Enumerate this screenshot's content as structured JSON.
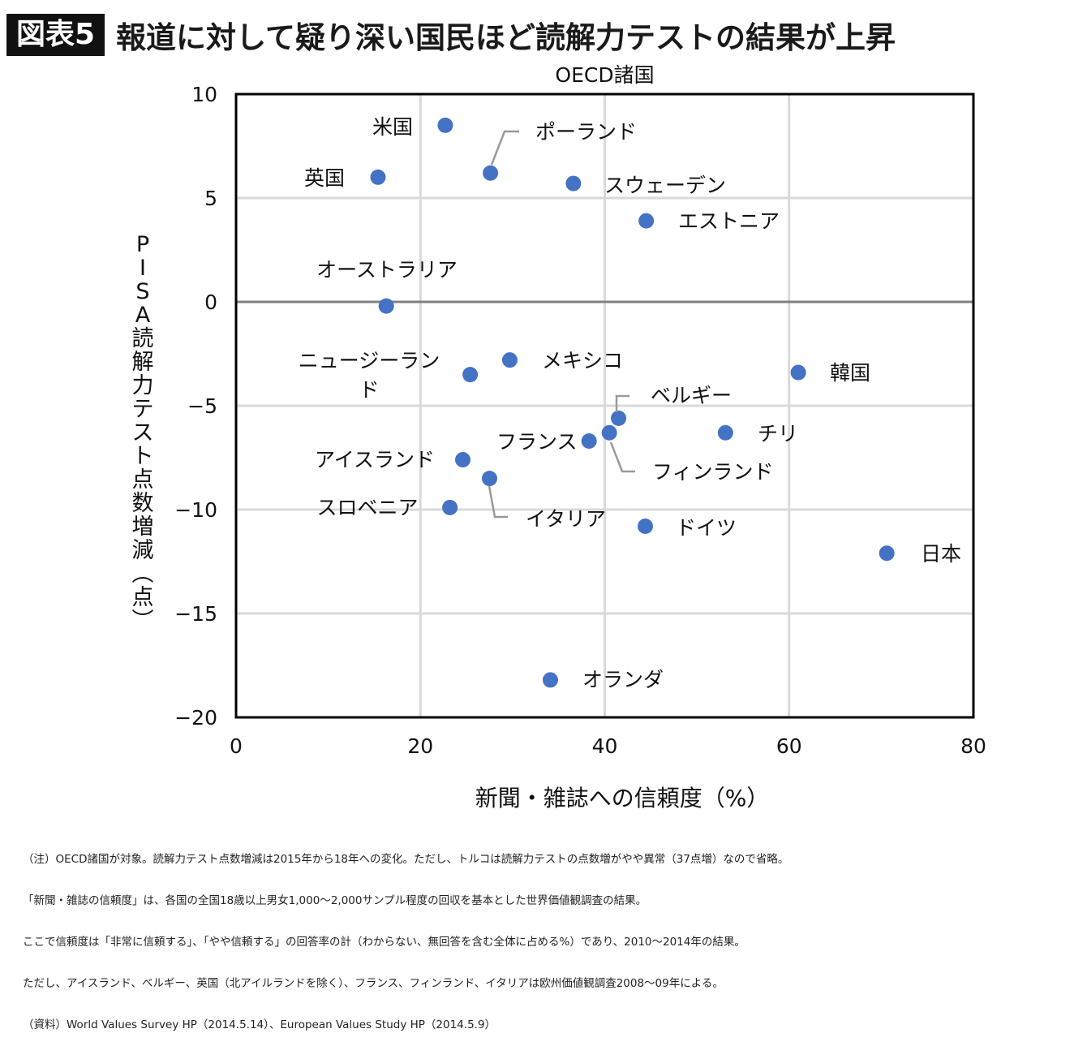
{
  "header": {
    "badge": "図表5",
    "title": "報道に対して疑り深い国民ほど読解力テストの結果が上昇"
  },
  "chart_data": {
    "type": "scatter",
    "title": "OECD諸国",
    "xlabel": "新聞・雑誌への信頼度（%）",
    "ylabel": "PISA読解力テスト点数増減（点）",
    "xlim": [
      0,
      80
    ],
    "ylim": [
      -20,
      10
    ],
    "xticks": [
      "0",
      "20",
      "40",
      "60",
      "80"
    ],
    "yticks": [
      "10",
      "5",
      "0",
      "−5",
      "−10",
      "−15",
      "−20"
    ],
    "grid": true,
    "point_color": "#4472c4",
    "points": [
      {
        "label": "米国",
        "x": 22.7,
        "y": 8.5
      },
      {
        "label": "英国",
        "x": 15.4,
        "y": 6.0
      },
      {
        "label": "ポーランド",
        "x": 27.6,
        "y": 6.2
      },
      {
        "label": "スウェーデン",
        "x": 36.6,
        "y": 5.7
      },
      {
        "label": "エストニア",
        "x": 44.5,
        "y": 3.9
      },
      {
        "label": "オーストラリア",
        "x": 16.3,
        "y": -0.2
      },
      {
        "label": "ニュージーランド",
        "x": 25.4,
        "y": -3.5
      },
      {
        "label": "メキシコ",
        "x": 29.7,
        "y": -2.8
      },
      {
        "label": "韓国",
        "x": 61.0,
        "y": -3.4
      },
      {
        "label": "ベルギー",
        "x": 41.5,
        "y": -5.6
      },
      {
        "label": "フィンランド",
        "x": 40.5,
        "y": -6.3
      },
      {
        "label": "フランス",
        "x": 38.3,
        "y": -6.7
      },
      {
        "label": "チリ",
        "x": 53.1,
        "y": -6.3
      },
      {
        "label": "アイスランド",
        "x": 24.6,
        "y": -7.6
      },
      {
        "label": "イタリア",
        "x": 27.5,
        "y": -8.5
      },
      {
        "label": "スロベニア",
        "x": 23.2,
        "y": -9.9
      },
      {
        "label": "ドイツ",
        "x": 44.4,
        "y": -10.8
      },
      {
        "label": "日本",
        "x": 70.6,
        "y": -12.1
      },
      {
        "label": "オランダ",
        "x": 34.1,
        "y": -18.2
      }
    ]
  },
  "notes": [
    "（注）OECD諸国が対象。読解力テスト点数増減は2015年から18年への変化。ただし、トルコは読解力テストの点数増がやや異常（37点増）なので省略。",
    "「新聞・雑誌の信頼度」は、各国の全国18歳以上男女1,000〜2,000サンプル程度の回収を基本とした世界価値観調査の結果。",
    "ここで信頼度は「非常に信頼する」、「やや信頼する」の回答率の計（わからない、無回答を含む全体に占める%）であり、2010〜2014年の結果。",
    "ただし、アイスランド、ベルギー、英国（北アイルランドを除く）、フランス、フィンランド、イタリアは欧州価値観調査2008〜09年による。",
    "（資料）World Values Survey HP（2014.5.14）、European Values Study HP（2014.5.9）"
  ]
}
